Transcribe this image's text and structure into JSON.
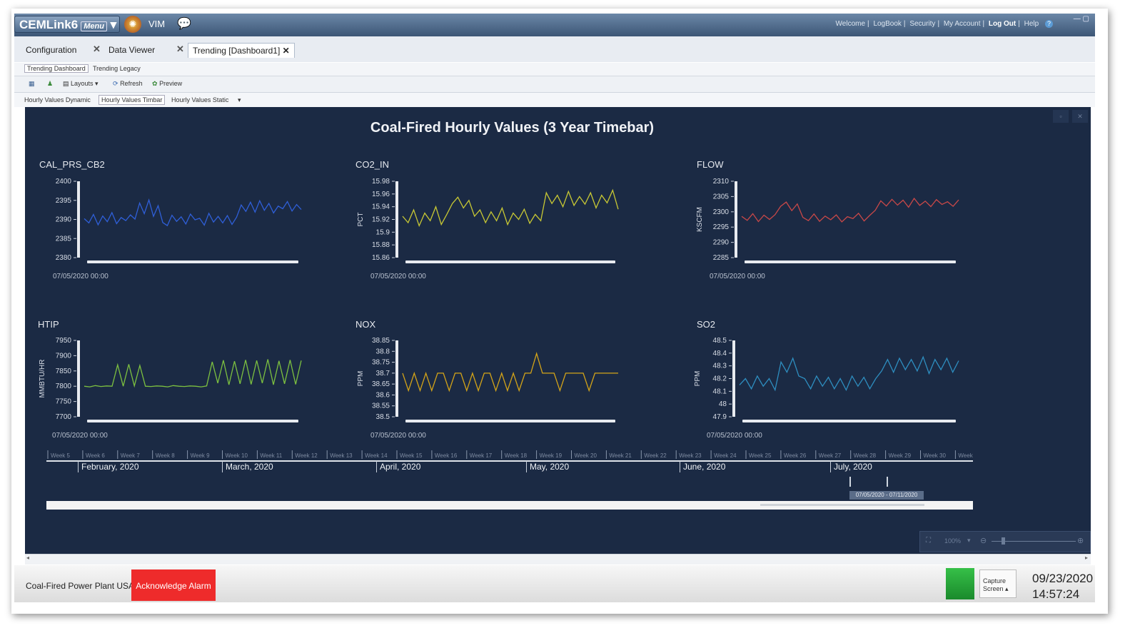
{
  "app": {
    "logo": "CEMLink6",
    "menu_label": "Menu",
    "vim_label": "VIM",
    "top_links": [
      "Welcome",
      "LogBook",
      "Security",
      "My Account",
      "Log Out",
      "Help"
    ]
  },
  "tabs": [
    {
      "label": "Configuration",
      "active": false
    },
    {
      "label": "Data Viewer",
      "active": false
    },
    {
      "label": "Trending [Dashboard1]",
      "active": true
    }
  ],
  "subtabs": [
    {
      "label": "Trending Dashboard",
      "active": true
    },
    {
      "label": "Trending Legacy",
      "active": false
    }
  ],
  "toolbar": {
    "layouts": "Layouts",
    "refresh": "Refresh",
    "preview": "Preview"
  },
  "dash_tabs": [
    {
      "label": "Hourly Values Dynamic",
      "active": false
    },
    {
      "label": "Hourly Values Timbar",
      "active": true
    },
    {
      "label": "Hourly Values Static",
      "active": false
    }
  ],
  "dashboard": {
    "title": "Coal-Fired Hourly Values (3 Year Timebar)"
  },
  "chart_data": [
    {
      "type": "line",
      "title": "CAL_PRS_CB2",
      "ylabel": "",
      "ticks": [
        "2400",
        "2395",
        "2390",
        "2385",
        "2380"
      ],
      "ylim": [
        2380,
        2400
      ],
      "xlabel_start": "07/05/2020 00:00",
      "color": "#2f5fd8",
      "values": [
        2390.2,
        2389.1,
        2391.3,
        2388.6,
        2390.9,
        2389.4,
        2391.8,
        2388.9,
        2390.5,
        2389.7,
        2391.2,
        2390.1,
        2394.3,
        2391.5,
        2395.1,
        2390.8,
        2393.6,
        2389.2,
        2388.4,
        2391.1,
        2389.5,
        2390.7,
        2388.8,
        2391.4,
        2389.9,
        2390.3,
        2388.5,
        2391.6,
        2389.3,
        2390.8,
        2389.1,
        2391.0,
        2388.7,
        2390.6,
        2393.8,
        2392.1,
        2394.5,
        2391.9,
        2394.9,
        2392.4,
        2394.2,
        2391.7,
        2393.5,
        2392.8,
        2394.7,
        2392.2,
        2393.9,
        2392.6
      ]
    },
    {
      "type": "line",
      "title": "CO2_IN",
      "ylabel": "PCT",
      "ticks": [
        "15.98",
        "15.96",
        "15.94",
        "15.92",
        "15.9",
        "15.88",
        "15.86"
      ],
      "ylim": [
        15.86,
        15.98
      ],
      "xlabel_start": "07/05/2020 00:00",
      "color": "#c8c834",
      "values": [
        15.925,
        15.915,
        15.935,
        15.91,
        15.93,
        15.918,
        15.94,
        15.912,
        15.928,
        15.945,
        15.955,
        15.938,
        15.95,
        15.925,
        15.935,
        15.915,
        15.932,
        15.918,
        15.938,
        15.912,
        15.93,
        15.92,
        15.936,
        15.914,
        15.928,
        15.918,
        15.962,
        15.945,
        15.958,
        15.94,
        15.964,
        15.942,
        15.956,
        15.944,
        15.962,
        15.938,
        15.958,
        15.946,
        15.966,
        15.936
      ]
    },
    {
      "type": "line",
      "title": "FLOW",
      "ylabel": "KSCFM",
      "ticks": [
        "2310",
        "2305",
        "2300",
        "2295",
        "2290",
        "2285"
      ],
      "ylim": [
        2285,
        2310
      ],
      "xlabel_start": "07/05/2020 00:00",
      "color": "#c84848",
      "values": [
        2298.5,
        2297.2,
        2299.4,
        2296.8,
        2298.9,
        2297.5,
        2299.1,
        2301.8,
        2303.2,
        2300.4,
        2302.6,
        2298.2,
        2297.1,
        2299.3,
        2296.9,
        2298.6,
        2297.4,
        2299.0,
        2296.7,
        2298.4,
        2297.8,
        2299.5,
        2297.0,
        2298.8,
        2300.5,
        2303.6,
        2301.9,
        2304.1,
        2302.2,
        2303.8,
        2301.5,
        2304.4,
        2302.1,
        2303.5,
        2301.7,
        2304.0,
        2302.4,
        2303.3,
        2301.8,
        2303.9
      ]
    },
    {
      "type": "line",
      "title": "HTIP",
      "ylabel": "MMBTU/HR",
      "ticks": [
        "7950",
        "7900",
        "7850",
        "7800",
        "7750",
        "7700"
      ],
      "ylim": [
        7700,
        7950
      ],
      "xlabel_start": "07/05/2020 00:00",
      "color": "#7cc040",
      "values": [
        7800,
        7798,
        7802,
        7799,
        7801,
        7800,
        7870,
        7800,
        7872,
        7801,
        7868,
        7800,
        7799,
        7801,
        7800,
        7798,
        7802,
        7800,
        7799,
        7801,
        7800,
        7798,
        7801,
        7880,
        7810,
        7885,
        7805,
        7882,
        7808,
        7886,
        7806,
        7884,
        7810,
        7888,
        7805,
        7883,
        7808,
        7886,
        7806,
        7884
      ]
    },
    {
      "type": "line",
      "title": "NOX",
      "ylabel": "PPM",
      "ticks": [
        "38.85",
        "38.8",
        "38.75",
        "38.7",
        "38.65",
        "38.6",
        "38.55",
        "38.5"
      ],
      "ylim": [
        38.5,
        38.85
      ],
      "xlabel_start": "07/05/2020 00:00",
      "color": "#d4a418",
      "values": [
        38.7,
        38.62,
        38.7,
        38.62,
        38.7,
        38.62,
        38.7,
        38.7,
        38.62,
        38.7,
        38.7,
        38.62,
        38.7,
        38.62,
        38.7,
        38.7,
        38.62,
        38.7,
        38.62,
        38.7,
        38.62,
        38.7,
        38.7,
        38.79,
        38.7,
        38.7,
        38.7,
        38.62,
        38.7,
        38.7,
        38.7,
        38.7,
        38.62,
        38.7,
        38.7,
        38.7,
        38.7,
        38.7
      ]
    },
    {
      "type": "line",
      "title": "SO2",
      "ylabel": "PPM",
      "ticks": [
        "48.5",
        "48.4",
        "48.3",
        "48.2",
        "48.1",
        "48",
        "47.9"
      ],
      "ylim": [
        47.9,
        48.5
      ],
      "xlabel_start": "07/05/2020 00:00",
      "color": "#2e8ec0",
      "values": [
        48.15,
        48.2,
        48.12,
        48.22,
        48.14,
        48.2,
        48.11,
        48.33,
        48.25,
        48.36,
        48.22,
        48.2,
        48.12,
        48.22,
        48.14,
        48.21,
        48.12,
        48.2,
        48.11,
        48.22,
        48.14,
        48.21,
        48.12,
        48.2,
        48.26,
        48.35,
        48.25,
        48.36,
        48.27,
        48.35,
        48.26,
        48.37,
        48.24,
        48.35,
        48.27,
        48.36,
        48.25,
        48.34
      ]
    }
  ],
  "timeline": {
    "weeks": [
      "Week 5",
      "Week 6",
      "Week 7",
      "Week 8",
      "Week 9",
      "Week 10",
      "Week 11",
      "Week 12",
      "Week 13",
      "Week 14",
      "Week 15",
      "Week 16",
      "Week 17",
      "Week 18",
      "Week 19",
      "Week 20",
      "Week 21",
      "Week 22",
      "Week 23",
      "Week 24",
      "Week 25",
      "Week 26",
      "Week 27",
      "Week 28",
      "Week 29",
      "Week 30",
      "Week"
    ],
    "months": [
      "February, 2020",
      "March, 2020",
      "April, 2020",
      "May, 2020",
      "June, 2020",
      "July, 2020"
    ],
    "range_label": "07/05/2020 - 07/11/2020"
  },
  "zoom": {
    "level": "100%"
  },
  "status": {
    "plant": "Coal-Fired Power Plant USA",
    "alarm_button": "Acknowledge Alarm",
    "capture_line1": "Capture",
    "capture_line2": "Screen",
    "date": "09/23/2020",
    "time": "14:57:24",
    "alarm_color": "#ee2b2b",
    "ok_color": "#2aaa3c"
  }
}
